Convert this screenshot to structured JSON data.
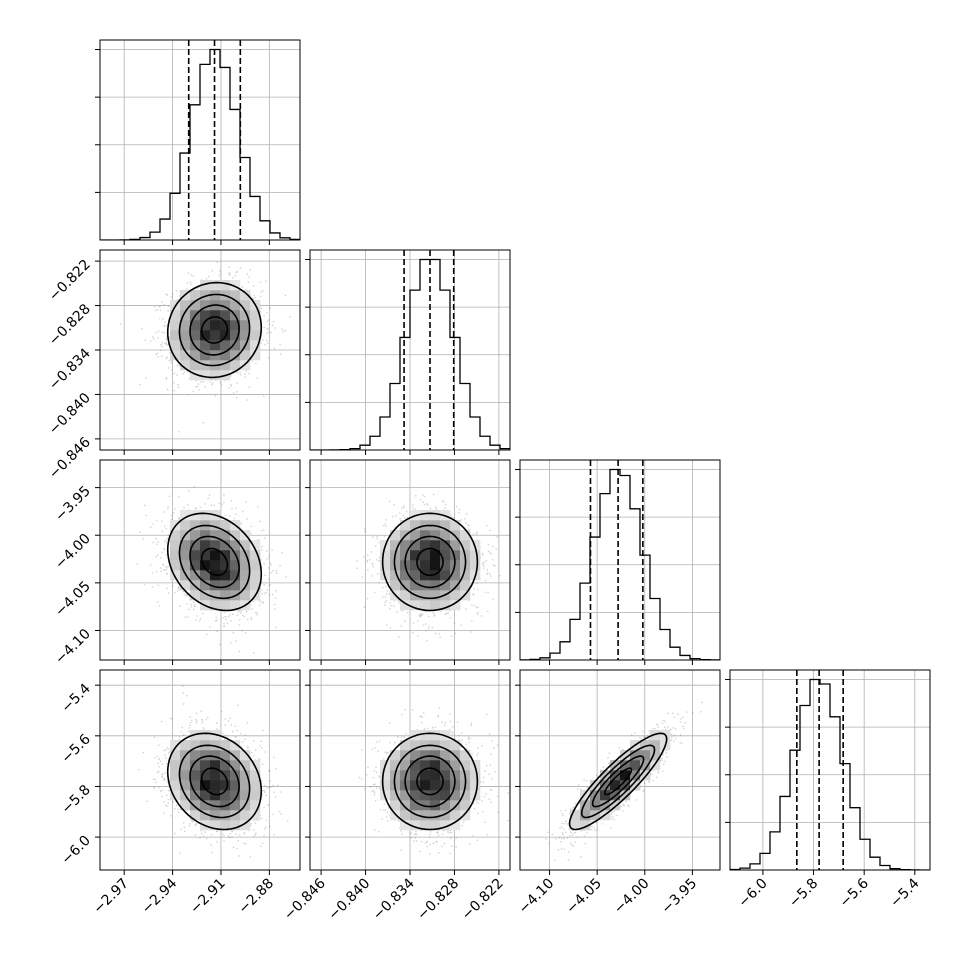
{
  "chart_data": {
    "type": "corner",
    "params": [
      {
        "name": "",
        "range": [
          -2.985,
          -2.861
        ],
        "ticks": [
          -2.97,
          -2.94,
          -2.91,
          -2.88
        ],
        "tick_labels": [
          "−2.97",
          "−2.94",
          "−2.91",
          "−2.88"
        ],
        "mean": -2.914,
        "std": 0.0145,
        "quantiles": [
          -2.93,
          -2.914,
          -2.898
        ]
      },
      {
        "name": "",
        "range": [
          -0.8475,
          -0.8205
        ],
        "ticks": [
          -0.846,
          -0.84,
          -0.834,
          -0.828,
          -0.822
        ],
        "tick_labels": [
          "−0.846",
          "−0.840",
          "−0.834",
          "−0.828",
          "−0.822"
        ],
        "mean": -0.8313,
        "std": 0.0032,
        "quantiles": [
          -0.8348,
          -0.8313,
          -0.8281
        ]
      },
      {
        "name": "",
        "range": [
          -4.131,
          -3.921
        ],
        "ticks": [
          -4.1,
          -4.05,
          -4.0,
          -3.95
        ],
        "tick_labels": [
          "−4.10",
          "−4.05",
          "−4.00",
          "−3.95"
        ],
        "mean": -4.028,
        "std": 0.0255,
        "quantiles": [
          -4.057,
          -4.028,
          -4.002
        ]
      },
      {
        "name": "",
        "range": [
          -6.13,
          -5.34
        ],
        "ticks": [
          -6.0,
          -5.8,
          -5.6,
          -5.4
        ],
        "tick_labels": [
          "−6.0",
          "−5.8",
          "−5.6",
          "−5.4"
        ],
        "mean": -5.78,
        "std": 0.095,
        "quantiles": [
          -5.866,
          -5.778,
          -5.683
        ]
      }
    ],
    "pair_correlations": [
      {
        "x": 0,
        "y": 1,
        "rho": 0.05
      },
      {
        "x": 0,
        "y": 2,
        "rho": -0.25
      },
      {
        "x": 1,
        "y": 2,
        "rho": 0.0
      },
      {
        "x": 0,
        "y": 3,
        "rho": -0.2
      },
      {
        "x": 1,
        "y": 3,
        "rho": 0.0
      },
      {
        "x": 2,
        "y": 3,
        "rho": 0.88
      }
    ],
    "histogram_bins": 20,
    "contour_levels_sigma": [
      0.5,
      1.0,
      1.5,
      2.0
    ],
    "grid": true,
    "quantile_lines": "dashed",
    "line_color": "#000000",
    "point_color": "#7f7f7f"
  }
}
